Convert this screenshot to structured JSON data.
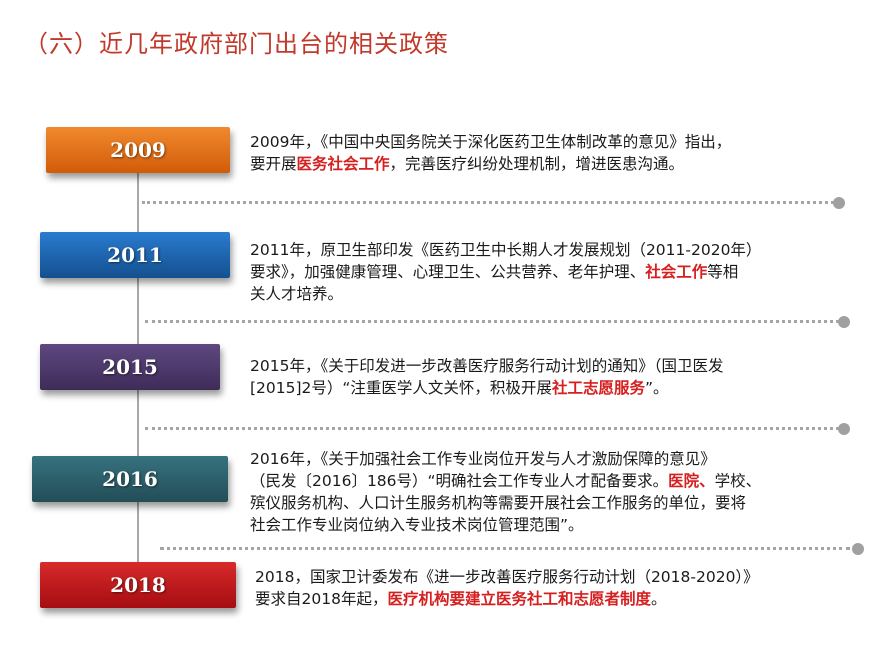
{
  "title": "（六）近几年政府部门出台的相关政策",
  "colors": {
    "title": "#c0392b",
    "highlight": "#d62020",
    "y2009": "#e06a10",
    "y2011": "#1a5fa8",
    "y2015": "#4e3a6a",
    "y2016": "#2c5f6b",
    "y2018": "#c2121c"
  },
  "timeline": [
    {
      "year": "2009",
      "lines": [
        [
          {
            "t": "2009年，《中国中央国务院关于深化医药卫生体制改革的意见》指出，"
          }
        ],
        [
          {
            "t": "要开展"
          },
          {
            "t": "医务社会工作",
            "hl": true
          },
          {
            "t": "，完善医疗纠纷处理机制，增进医患沟通。"
          }
        ]
      ]
    },
    {
      "year": "2011",
      "lines": [
        [
          {
            "t": "2011年，原卫生部印发《医药卫生中长期人才发展规划（2011-2020年）"
          }
        ],
        [
          {
            "t": "要求》，加强健康管理、心理卫生、公共营养、老年护理、"
          },
          {
            "t": "社会工作",
            "hl": true
          },
          {
            "t": "等相"
          }
        ],
        [
          {
            "t": "关人才培养。"
          }
        ]
      ]
    },
    {
      "year": "2015",
      "lines": [
        [
          {
            "t": "2015年，《关于印发进一步改善医疗服务行动计划的通知》（国卫医发"
          }
        ],
        [
          {
            "t": "[2015]2号）“注重医学人文关怀，积极开展"
          },
          {
            "t": "社工志愿服务",
            "hl": true
          },
          {
            "t": "”。"
          }
        ]
      ]
    },
    {
      "year": "2016",
      "lines": [
        [
          {
            "t": "2016年，《关于加强社会工作专业岗位开发与人才激励保障的意见》"
          }
        ],
        [
          {
            "t": "（民发〔2016〕186号）“明确社会工作专业人才配备要求。"
          },
          {
            "t": "医院、",
            "hl": true
          },
          {
            "t": "学校、"
          }
        ],
        [
          {
            "t": "殡仪服务机构、人口计生服务机构等需要开展社会工作服务的单位，要将"
          }
        ],
        [
          {
            "t": "社会工作专业岗位纳入专业技术岗位管理范围”。"
          }
        ]
      ]
    },
    {
      "year": "2018",
      "lines": [
        [
          {
            "t": "2018，国家卫计委发布《进一步改善医疗服务行动计划（2018-2020）》"
          }
        ],
        [
          {
            "t": "要求自2018年起，"
          },
          {
            "t": "医疗机构要建立医务社工和志愿者制度",
            "hl": true
          },
          {
            "t": "。"
          }
        ]
      ]
    }
  ]
}
